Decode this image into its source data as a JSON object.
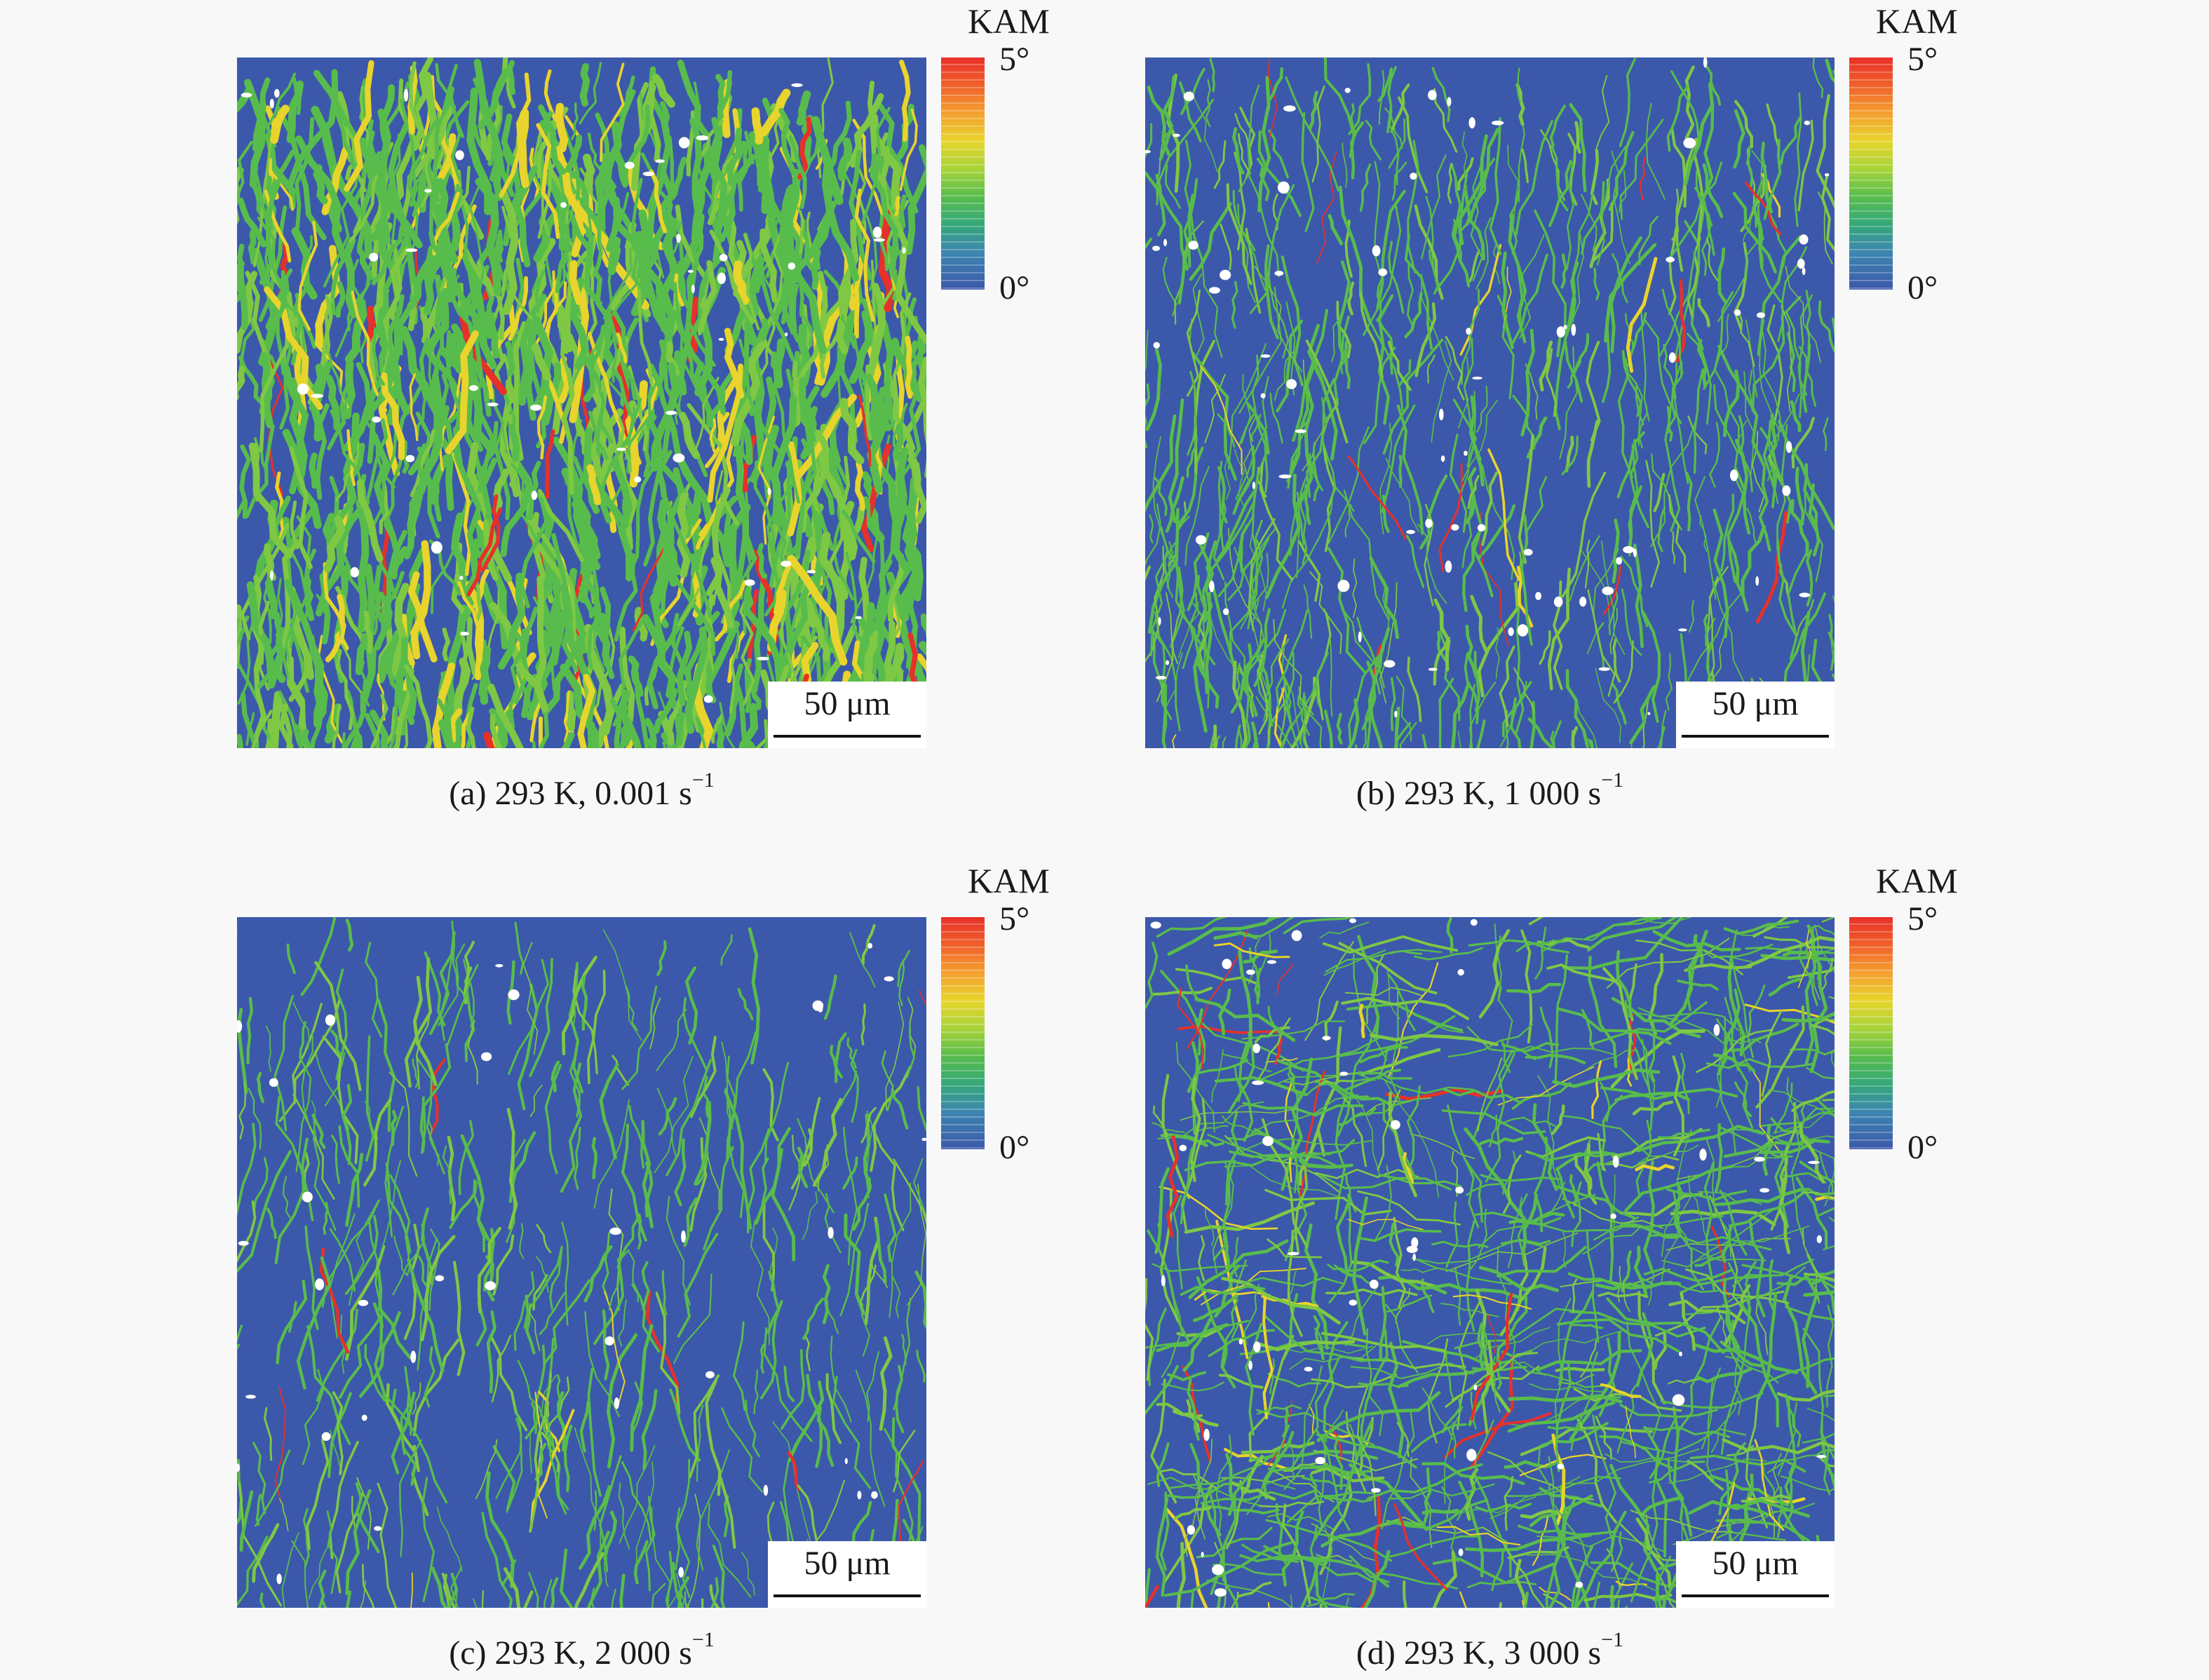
{
  "colorbar": {
    "title": "KAM",
    "max_label": "5°",
    "min_label": "0°"
  },
  "scale_bar_label": "50 μm",
  "colors": {
    "background": "#3c58aa",
    "low": "#3c58aa",
    "mid": "#58bc4c",
    "high_mid": "#e8d42c",
    "high": "#e8302a",
    "unindexed": "#ffffff"
  },
  "panels": [
    {
      "id": "a",
      "caption_main": "(a) 293 K, 0.001 s",
      "caption_exp": "−1",
      "green_fraction": 0.68,
      "yellow_fraction": 0.12,
      "white_fraction": 0.01
    },
    {
      "id": "b",
      "caption_main": "(b) 293 K, 1 000 s",
      "caption_exp": "−1",
      "green_fraction": 0.34,
      "yellow_fraction": 0.02,
      "white_fraction": 0.02
    },
    {
      "id": "c",
      "caption_main": "(c) 293 K, 2 000 s",
      "caption_exp": "−1",
      "green_fraction": 0.2,
      "yellow_fraction": 0.01,
      "white_fraction": 0.005
    },
    {
      "id": "d",
      "caption_main": "(d) 293 K, 3 000 s",
      "caption_exp": "−1",
      "green_fraction": 0.48,
      "yellow_fraction": 0.06,
      "white_fraction": 0.01
    }
  ]
}
